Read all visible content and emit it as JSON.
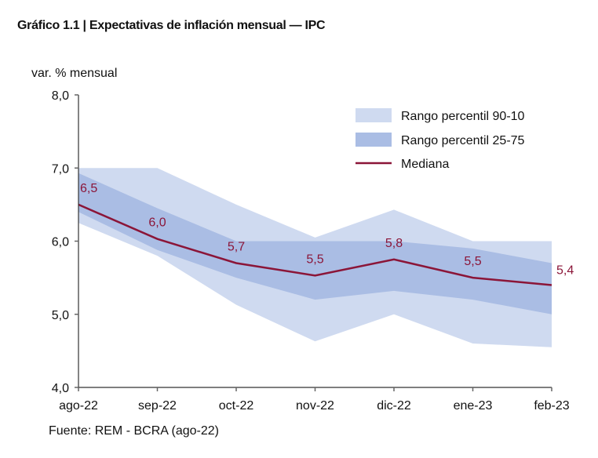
{
  "chart_data": {
    "type": "area",
    "title": "Gráfico 1.1 | Expectativas de inflación mensual — IPC",
    "ylabel": "var. % mensual",
    "xlabel": "",
    "source": "Fuente: REM - BCRA (ago-22)",
    "categories": [
      "ago-22",
      "sep-22",
      "oct-22",
      "nov-22",
      "dic-22",
      "ene-23",
      "feb-23"
    ],
    "ylim": [
      4.0,
      8.0
    ],
    "yticks": [
      "4,0",
      "5,0",
      "6,0",
      "7,0",
      "8,0"
    ],
    "ytick_values": [
      4,
      5,
      6,
      7,
      8
    ],
    "grid": false,
    "legend_position": "top-right",
    "series": [
      {
        "name": "Rango percentil 90-10",
        "kind": "band",
        "color": "#cfdaf0",
        "upper": [
          7.0,
          7.0,
          6.5,
          6.05,
          6.43,
          6.0,
          6.0
        ],
        "lower": [
          6.25,
          5.8,
          5.13,
          4.63,
          5.0,
          4.6,
          4.55
        ]
      },
      {
        "name": "Rango percentil 25-75",
        "kind": "band",
        "color": "#aabde4",
        "upper": [
          6.93,
          6.45,
          6.0,
          6.0,
          6.0,
          5.9,
          5.7
        ],
        "lower": [
          6.4,
          5.88,
          5.5,
          5.2,
          5.32,
          5.2,
          5.0
        ]
      },
      {
        "name": "Mediana",
        "kind": "line",
        "color": "#8b1538",
        "values": [
          6.5,
          6.03,
          5.7,
          5.53,
          5.75,
          5.5,
          5.4
        ],
        "labels": [
          "6,5",
          "6,0",
          "5,7",
          "5,5",
          "5,8",
          "5,5",
          "5,4"
        ]
      }
    ]
  }
}
